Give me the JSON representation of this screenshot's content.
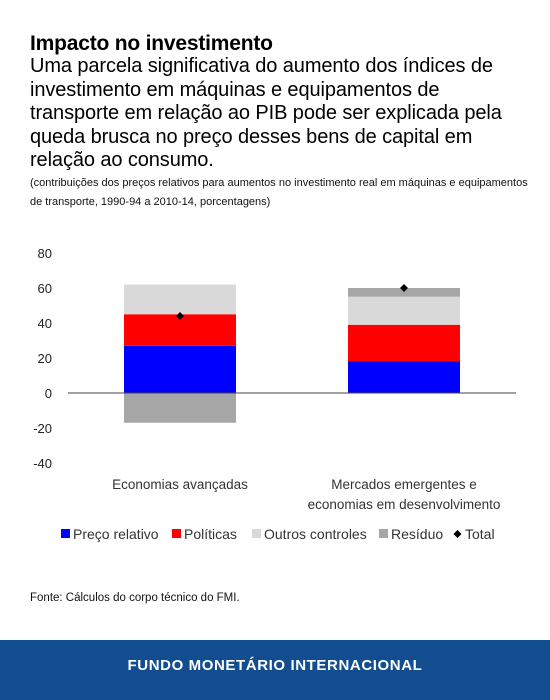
{
  "header": {
    "title": "Impacto no investimento",
    "subtitle": "Uma parcela significativa do aumento dos índices de investimento em máquinas e equipamentos de transporte em relação ao PIB pode ser explicada pela queda brusca no preço desses bens de capital em relação ao consumo.",
    "note": "(contribuições dos preços relativos para aumentos no investimento real em máquinas e equipamentos de transporte, 1990-94 a 2010-14, porcentagens)"
  },
  "chart_data": {
    "type": "bar",
    "stacked": true,
    "categories": [
      [
        "Economias avançadas"
      ],
      [
        "Mercados emergentes e",
        "economias em desenvolvimento"
      ]
    ],
    "series": [
      {
        "name": "Preço relativo",
        "color": "#0000ff",
        "values": [
          27,
          18
        ]
      },
      {
        "name": "Políticas",
        "color": "#ff0000",
        "values": [
          18,
          21
        ]
      },
      {
        "name": "Outros controles",
        "color": "#d9d9d9",
        "values": [
          17,
          16
        ]
      },
      {
        "name": "Resíduo",
        "color": "#a6a6a6",
        "values": [
          -17,
          5
        ]
      }
    ],
    "total": {
      "name": "Total",
      "color": "#000000",
      "marker": "diamond",
      "values": [
        44,
        60
      ]
    },
    "ylim": [
      -40,
      80
    ],
    "yticks": [
      80,
      60,
      40,
      20,
      0,
      -20,
      -40
    ],
    "xlabel": "",
    "ylabel": "",
    "grid": false,
    "legend": "bottom"
  },
  "source": "Fonte: Cálculos do corpo técnico do FMI.",
  "footer": {
    "org": "FUNDO MONETÁRIO INTERNACIONAL"
  }
}
